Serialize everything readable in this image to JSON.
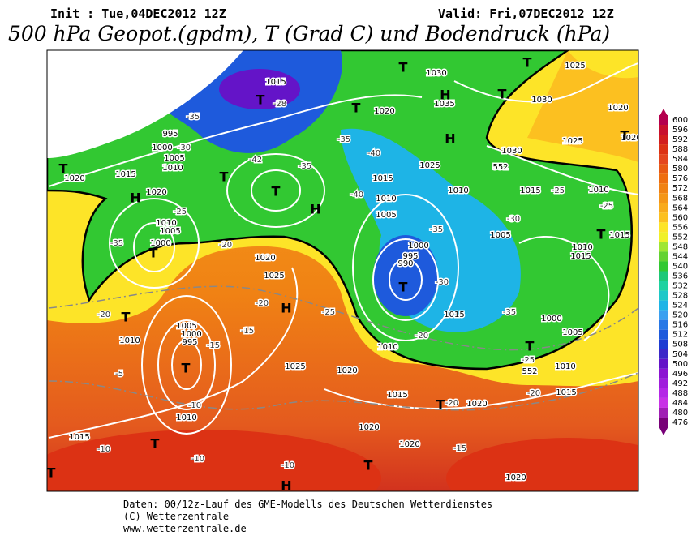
{
  "header": {
    "init": "Init : Tue,04DEC2012 12Z",
    "valid": "Valid: Fri,07DEC2012 12Z",
    "title": "500 hPa Geopot.(gpdm), T (Grad C) und Bodendruck (hPa)"
  },
  "colorbar": {
    "values": [
      600,
      596,
      592,
      588,
      584,
      580,
      576,
      572,
      568,
      564,
      560,
      556,
      552,
      548,
      544,
      540,
      536,
      532,
      528,
      524,
      520,
      516,
      512,
      508,
      504,
      500,
      496,
      492,
      488,
      484,
      480,
      476
    ],
    "colors": [
      "#b4004e",
      "#c8102e",
      "#d21e1e",
      "#dc3214",
      "#e4461e",
      "#e85a14",
      "#ee6e10",
      "#f08214",
      "#f49618",
      "#f8aa1c",
      "#fcc020",
      "#fde428",
      "#f0f028",
      "#a0e632",
      "#64d232",
      "#32c832",
      "#1ec878",
      "#1ed2a0",
      "#1ec8c8",
      "#1eb4e6",
      "#3ca0f0",
      "#2878e6",
      "#1e5adc",
      "#1e3cd2",
      "#3c28c8",
      "#6414c8",
      "#8c14d2",
      "#a01edc",
      "#b428e6",
      "#c832e6",
      "#a01eb4",
      "#780078"
    ]
  },
  "map": {
    "pressure_labels": [
      "1015",
      "995",
      "1000",
      "1005",
      "1010",
      "1020",
      "1015",
      "1020",
      "1010",
      "1005",
      "1000",
      "1020",
      "1025",
      "1010",
      "1005",
      "1000",
      "995",
      "1010",
      "1015",
      "1025",
      "1020",
      "1015",
      "1020",
      "1020",
      "1020",
      "1030",
      "1035",
      "1030",
      "1030",
      "1025",
      "1025",
      "1020",
      "1015",
      "1010",
      "1005",
      "1000",
      "995",
      "990",
      "1010",
      "1015",
      "1005",
      "1010",
      "1015",
      "1000",
      "1005",
      "1010",
      "1015",
      "1020",
      "1010",
      "1015",
      "1025",
      "1020",
      "1020",
      "1010",
      "1015"
    ],
    "temperature_labels": [
      "-35",
      "-30",
      "-42",
      "-40",
      "-35",
      "-40",
      "-35",
      "-30",
      "-25",
      "-25",
      "-35",
      "-20",
      "-20",
      "-15",
      "-15",
      "-10",
      "-5",
      "-10",
      "-10",
      "-10",
      "-20",
      "-20",
      "-15",
      "-20",
      "-25",
      "-20",
      "-25",
      "-30",
      "-35",
      "-25",
      "-28",
      "-35"
    ],
    "centers": [
      "H",
      "T",
      "H",
      "T",
      "T",
      "T",
      "T",
      "H",
      "T",
      "T",
      "T",
      "H",
      "T",
      "T",
      "T",
      "T",
      "T",
      "T",
      "T",
      "H",
      "T",
      "T",
      "T",
      "H",
      "T"
    ],
    "contour_labels": [
      "552",
      "552"
    ]
  },
  "footer": [
    "Daten: 00/12z-Lauf des GME-Modells des Deutschen Wetterdienstes",
    "(C) Wetterzentrale",
    "www.wetterzentrale.de"
  ]
}
